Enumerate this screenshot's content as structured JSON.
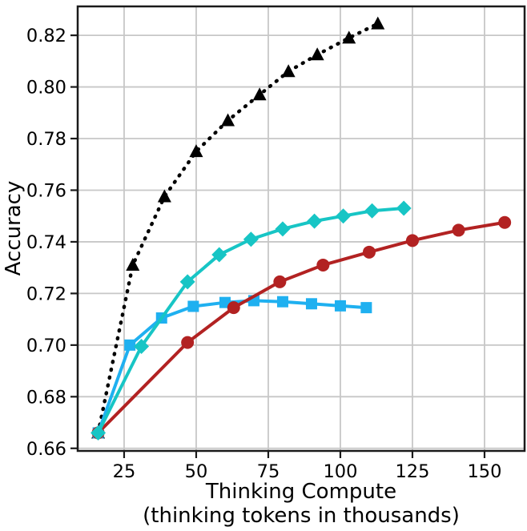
{
  "chart_data": {
    "type": "line",
    "title": "",
    "ylabel": "Accuracy",
    "xlabel_lines": [
      "Thinking Compute",
      "(thinking tokens in thousands)"
    ],
    "xlim": [
      8.9,
      163.9
    ],
    "ylim": [
      0.659,
      0.8312
    ],
    "xticks": [
      25,
      50,
      75,
      100,
      125,
      150
    ],
    "yticks": [
      0.66,
      0.68,
      0.7,
      0.72,
      0.74,
      0.76,
      0.78,
      0.8,
      0.82
    ],
    "grid": true,
    "legend": "none",
    "colors": {
      "grid": "#c7c7c7",
      "spine": "#1a1a1a",
      "black_series": "#000000",
      "blue_series": "#1fb0f0",
      "red_series": "#b22222",
      "teal_series": "#17c5c5"
    },
    "series": [
      {
        "name": "black-dotted-triangle",
        "color_key": "black_series",
        "line_style": "dotted",
        "marker": "triangle-up",
        "x": [
          16,
          28,
          39,
          50,
          61,
          72,
          82,
          92,
          103,
          113
        ],
        "y": [
          0.666,
          0.731,
          0.7575,
          0.775,
          0.787,
          0.797,
          0.806,
          0.8125,
          0.819,
          0.8245
        ]
      },
      {
        "name": "blue-square",
        "color_key": "blue_series",
        "line_style": "solid",
        "marker": "square",
        "x": [
          16,
          27,
          38,
          49,
          60,
          70,
          80,
          90,
          100,
          109
        ],
        "y": [
          0.666,
          0.7,
          0.7105,
          0.715,
          0.7165,
          0.7172,
          0.7168,
          0.716,
          0.7152,
          0.7145
        ]
      },
      {
        "name": "darkred-circle",
        "color_key": "red_series",
        "line_style": "solid",
        "marker": "circle",
        "x": [
          16,
          47,
          63,
          79,
          94,
          110,
          125,
          141,
          157
        ],
        "y": [
          0.666,
          0.701,
          0.7145,
          0.7245,
          0.731,
          0.736,
          0.7405,
          0.7445,
          0.7475
        ]
      },
      {
        "name": "teal-diamond",
        "color_key": "teal_series",
        "line_style": "solid",
        "marker": "diamond",
        "x": [
          16,
          31,
          47,
          58,
          69,
          80,
          91,
          101,
          111,
          122
        ],
        "y": [
          0.666,
          0.6995,
          0.7245,
          0.735,
          0.741,
          0.745,
          0.748,
          0.75,
          0.752,
          0.753
        ]
      }
    ]
  }
}
